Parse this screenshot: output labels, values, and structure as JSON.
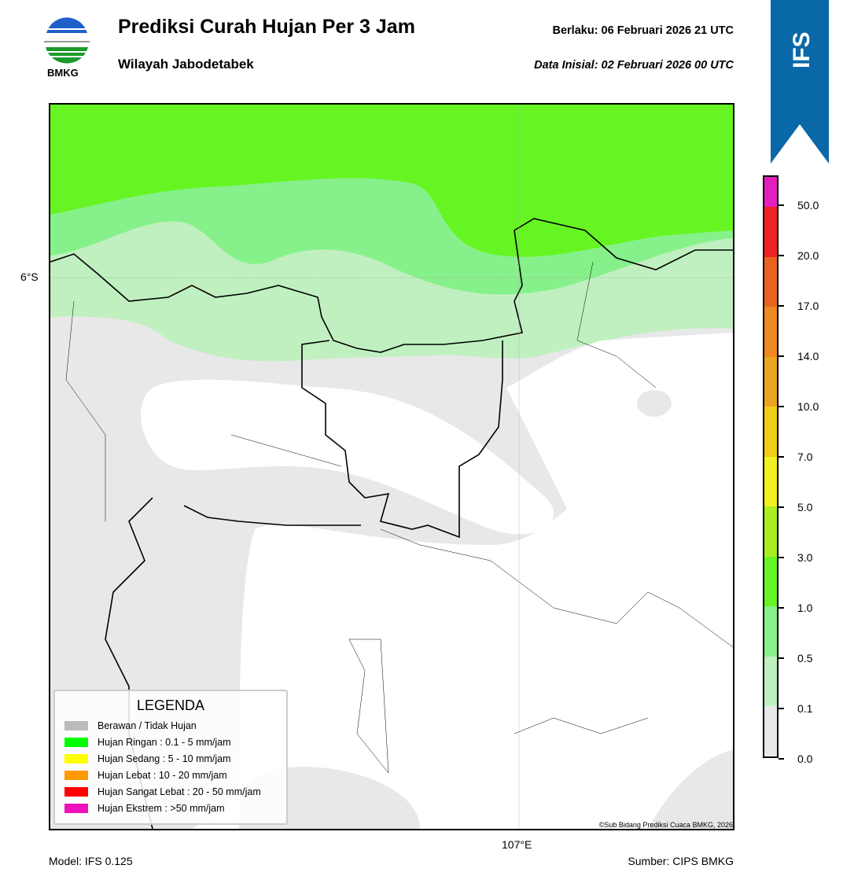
{
  "header": {
    "title": "Prediksi Curah Hujan Per 3 Jam",
    "subtitle": "Wilayah Jabodetabek",
    "valid": "Berlaku:  06 Februari 2026 21 UTC",
    "initial": "Data Inisial:  02 Februari 2026 00 UTC",
    "logo_text": "BMKG",
    "model_badge": "IFS"
  },
  "map": {
    "lat_label": "6°S",
    "lon_label": "107°E",
    "copyright": "©Sub Bidang Prediksi Cuaca BMKG, 2026",
    "colors": {
      "no_rain": "#e8e8e8",
      "light_01": "#c0f0c0",
      "light_05": "#86f18a",
      "light_1": "#66f522",
      "land": "#ffffff"
    }
  },
  "legend": {
    "title": "LEGENDA",
    "items": [
      {
        "label": "Berawan / Tidak Hujan",
        "color": "#bbbbbb"
      },
      {
        "label": "Hujan Ringan : 0.1 - 5 mm/jam",
        "color": "#00ff00"
      },
      {
        "label": "Hujan Sedang : 5 - 10 mm/jam",
        "color": "#ffff00"
      },
      {
        "label": "Hujan Lebat : 10 - 20 mm/jam",
        "color": "#ff9900"
      },
      {
        "label": "Hujan Sangat Lebat : 20 - 50 mm/jam",
        "color": "#ff0000"
      },
      {
        "label": "Hujan Ekstrem : >50 mm/jam",
        "color": "#ee11bb"
      }
    ]
  },
  "colorbar": {
    "ticks": [
      "50.0",
      "20.0",
      "17.0",
      "14.0",
      "10.0",
      "7.0",
      "5.0",
      "3.0",
      "1.0",
      "0.5",
      "0.1",
      "0.0"
    ],
    "colors": [
      "#e41fbf",
      "#ee2222",
      "#e96320",
      "#ee8820",
      "#eaa620",
      "#f0cf18",
      "#f2f222",
      "#aaee22",
      "#66f522",
      "#86f18a",
      "#c0f0c0",
      "#e8e8e8"
    ]
  },
  "footer": {
    "model": "Model: IFS 0.125",
    "source": "Sumber: CIPS BMKG"
  }
}
